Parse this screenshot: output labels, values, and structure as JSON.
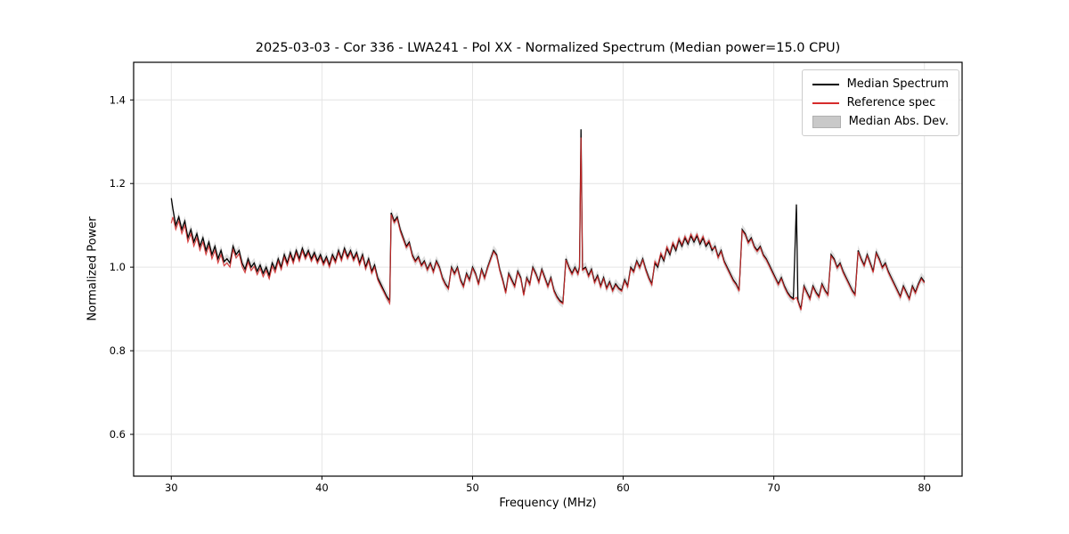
{
  "chart_data": {
    "type": "line",
    "title": "2025-03-03 - Cor 336 - LWA241 - Pol XX - Normalized Spectrum (Median power=15.0 CPU)",
    "xlabel": "Frequency (MHz)",
    "ylabel": "Normalized Power",
    "xlim": [
      27.5,
      82.5
    ],
    "ylim": [
      0.5,
      1.49
    ],
    "x_tick_labels": [
      "30",
      "40",
      "50",
      "60",
      "70",
      "80"
    ],
    "y_tick_labels": [
      "0.6",
      "0.8",
      "1.0",
      "1.2",
      "1.4"
    ],
    "grid": true,
    "legend": {
      "position": "upper right"
    },
    "x": [
      30.0,
      30.1,
      30.3,
      30.5,
      30.7,
      30.9,
      31.1,
      31.3,
      31.5,
      31.7,
      31.9,
      32.1,
      32.3,
      32.5,
      32.7,
      32.9,
      33.1,
      33.3,
      33.5,
      33.7,
      33.9,
      34.1,
      34.3,
      34.5,
      34.7,
      34.9,
      35.1,
      35.3,
      35.5,
      35.7,
      35.9,
      36.1,
      36.3,
      36.5,
      36.7,
      36.9,
      37.1,
      37.3,
      37.5,
      37.7,
      37.9,
      38.1,
      38.3,
      38.5,
      38.7,
      38.9,
      39.1,
      39.3,
      39.5,
      39.7,
      39.9,
      40.1,
      40.3,
      40.5,
      40.7,
      40.9,
      41.1,
      41.3,
      41.5,
      41.7,
      41.9,
      42.1,
      42.3,
      42.5,
      42.7,
      42.9,
      43.1,
      43.3,
      43.5,
      43.7,
      43.9,
      44.1,
      44.3,
      44.5,
      44.6,
      44.8,
      45.0,
      45.2,
      45.4,
      45.6,
      45.8,
      46.0,
      46.2,
      46.4,
      46.6,
      46.8,
      47.0,
      47.2,
      47.4,
      47.6,
      47.8,
      48.0,
      48.2,
      48.4,
      48.6,
      48.8,
      49.0,
      49.2,
      49.4,
      49.6,
      49.8,
      50.0,
      50.2,
      50.4,
      50.6,
      50.8,
      51.0,
      51.2,
      51.4,
      51.6,
      51.8,
      52.0,
      52.2,
      52.4,
      52.6,
      52.8,
      53.0,
      53.2,
      53.4,
      53.6,
      53.8,
      54.0,
      54.2,
      54.4,
      54.6,
      54.8,
      55.0,
      55.2,
      55.4,
      55.6,
      55.8,
      56.0,
      56.2,
      56.4,
      56.6,
      56.8,
      57.0,
      57.1,
      57.2,
      57.3,
      57.5,
      57.7,
      57.9,
      58.1,
      58.3,
      58.5,
      58.7,
      58.9,
      59.1,
      59.3,
      59.5,
      59.7,
      59.9,
      60.1,
      60.3,
      60.5,
      60.7,
      60.9,
      61.1,
      61.3,
      61.5,
      61.7,
      61.9,
      62.1,
      62.3,
      62.5,
      62.7,
      62.9,
      63.1,
      63.3,
      63.5,
      63.7,
      63.9,
      64.1,
      64.3,
      64.5,
      64.7,
      64.9,
      65.1,
      65.3,
      65.5,
      65.7,
      65.9,
      66.1,
      66.3,
      66.5,
      66.7,
      66.9,
      67.1,
      67.3,
      67.5,
      67.7,
      67.9,
      68.1,
      68.3,
      68.5,
      68.7,
      68.9,
      69.1,
      69.3,
      69.5,
      69.7,
      69.9,
      70.1,
      70.3,
      70.5,
      70.7,
      70.9,
      71.1,
      71.3,
      71.5,
      71.6,
      71.8,
      72.0,
      72.2,
      72.4,
      72.6,
      72.8,
      73.0,
      73.2,
      73.4,
      73.6,
      73.8,
      74.0,
      74.2,
      74.4,
      74.6,
      74.8,
      75.0,
      75.2,
      75.4,
      75.6,
      75.8,
      76.0,
      76.2,
      76.4,
      76.6,
      76.8,
      77.0,
      77.2,
      77.4,
      77.6,
      77.8,
      78.0,
      78.2,
      78.4,
      78.6,
      78.8,
      79.0,
      79.2,
      79.4,
      79.6,
      79.8,
      80.0
    ],
    "series": [
      {
        "name": "Median Spectrum",
        "color": "#000000",
        "values": [
          1.165,
          1.14,
          1.1,
          1.12,
          1.09,
          1.11,
          1.07,
          1.09,
          1.06,
          1.08,
          1.05,
          1.07,
          1.04,
          1.06,
          1.03,
          1.05,
          1.02,
          1.04,
          1.013,
          1.02,
          1.01,
          1.05,
          1.03,
          1.04,
          1.01,
          0.995,
          1.02,
          1.0,
          1.01,
          0.99,
          1.005,
          0.985,
          1.0,
          0.98,
          1.01,
          0.995,
          1.02,
          1.0,
          1.03,
          1.01,
          1.035,
          1.015,
          1.04,
          1.02,
          1.045,
          1.025,
          1.04,
          1.02,
          1.035,
          1.015,
          1.03,
          1.01,
          1.025,
          1.005,
          1.03,
          1.015,
          1.04,
          1.02,
          1.045,
          1.025,
          1.04,
          1.02,
          1.035,
          1.01,
          1.03,
          1.0,
          1.02,
          0.99,
          1.005,
          0.975,
          0.96,
          0.945,
          0.93,
          0.92,
          1.13,
          1.11,
          1.12,
          1.09,
          1.07,
          1.05,
          1.06,
          1.03,
          1.015,
          1.025,
          1.005,
          1.015,
          0.995,
          1.01,
          0.99,
          1.015,
          1.0,
          0.975,
          0.96,
          0.95,
          1.0,
          0.985,
          1.0,
          0.97,
          0.955,
          0.985,
          0.97,
          1.0,
          0.985,
          0.96,
          0.995,
          0.975,
          1.0,
          1.02,
          1.04,
          1.03,
          0.995,
          0.97,
          0.94,
          0.985,
          0.97,
          0.955,
          0.99,
          0.975,
          0.935,
          0.975,
          0.96,
          1.0,
          0.985,
          0.965,
          0.995,
          0.975,
          0.955,
          0.975,
          0.945,
          0.93,
          0.92,
          0.915,
          1.02,
          1.0,
          0.985,
          1.0,
          0.985,
          1.0,
          1.33,
          0.995,
          1.0,
          0.98,
          0.995,
          0.965,
          0.98,
          0.955,
          0.975,
          0.95,
          0.965,
          0.945,
          0.96,
          0.95,
          0.945,
          0.97,
          0.955,
          1.0,
          0.99,
          1.015,
          1.0,
          1.02,
          0.995,
          0.975,
          0.96,
          1.01,
          1.0,
          1.03,
          1.015,
          1.045,
          1.03,
          1.055,
          1.04,
          1.065,
          1.05,
          1.07,
          1.055,
          1.075,
          1.06,
          1.075,
          1.055,
          1.07,
          1.05,
          1.06,
          1.04,
          1.05,
          1.025,
          1.04,
          1.015,
          1.0,
          0.985,
          0.97,
          0.96,
          0.945,
          1.09,
          1.08,
          1.06,
          1.07,
          1.05,
          1.04,
          1.05,
          1.03,
          1.02,
          1.005,
          0.99,
          0.975,
          0.96,
          0.975,
          0.955,
          0.94,
          0.93,
          0.925,
          1.15,
          0.92,
          0.9,
          0.955,
          0.94,
          0.925,
          0.955,
          0.94,
          0.93,
          0.96,
          0.945,
          0.935,
          1.03,
          1.02,
          1.0,
          1.01,
          0.99,
          0.975,
          0.96,
          0.945,
          0.935,
          1.04,
          1.02,
          1.005,
          1.03,
          1.01,
          0.99,
          1.035,
          1.02,
          1.0,
          1.01,
          0.99,
          0.975,
          0.96,
          0.945,
          0.93,
          0.955,
          0.94,
          0.925,
          0.955,
          0.94,
          0.96,
          0.975,
          0.965
        ]
      },
      {
        "name": "Reference spec",
        "color": "#d62b2b",
        "values": [
          1.105,
          1.12,
          1.09,
          1.11,
          1.08,
          1.1,
          1.06,
          1.08,
          1.05,
          1.07,
          1.04,
          1.06,
          1.03,
          1.05,
          1.02,
          1.04,
          1.01,
          1.03,
          1.003,
          1.01,
          1.0,
          1.042,
          1.022,
          1.032,
          1.002,
          0.987,
          1.012,
          0.992,
          1.002,
          0.982,
          0.997,
          0.977,
          0.992,
          0.972,
          1.002,
          0.987,
          1.014,
          0.994,
          1.024,
          1.004,
          1.029,
          1.009,
          1.034,
          1.014,
          1.039,
          1.019,
          1.034,
          1.014,
          1.029,
          1.009,
          1.024,
          1.005,
          1.02,
          1.0,
          1.025,
          1.01,
          1.035,
          1.015,
          1.04,
          1.02,
          1.035,
          1.015,
          1.03,
          1.005,
          1.025,
          0.995,
          1.015,
          0.985,
          1.0,
          0.97,
          0.955,
          0.941,
          0.926,
          0.913,
          1.126,
          1.106,
          1.116,
          1.086,
          1.066,
          1.046,
          1.056,
          1.026,
          1.012,
          1.022,
          1.002,
          1.012,
          0.992,
          1.007,
          0.987,
          1.012,
          0.997,
          0.972,
          0.957,
          0.947,
          0.997,
          0.982,
          0.997,
          0.967,
          0.952,
          0.982,
          0.967,
          0.997,
          0.982,
          0.957,
          0.992,
          0.972,
          0.997,
          1.017,
          1.037,
          1.027,
          0.992,
          0.967,
          0.937,
          0.982,
          0.967,
          0.952,
          0.987,
          0.972,
          0.932,
          0.972,
          0.957,
          0.997,
          0.982,
          0.962,
          0.992,
          0.972,
          0.952,
          0.972,
          0.942,
          0.927,
          0.917,
          0.912,
          1.017,
          0.997,
          0.982,
          0.997,
          0.982,
          0.997,
          1.31,
          0.992,
          0.997,
          0.977,
          0.992,
          0.962,
          0.977,
          0.952,
          0.972,
          0.947,
          0.962,
          0.942,
          0.957,
          0.947,
          0.942,
          0.967,
          0.952,
          0.997,
          0.987,
          1.012,
          0.997,
          1.017,
          0.992,
          0.972,
          0.957,
          1.014,
          1.004,
          1.034,
          1.019,
          1.049,
          1.034,
          1.059,
          1.044,
          1.069,
          1.054,
          1.074,
          1.059,
          1.079,
          1.064,
          1.079,
          1.059,
          1.074,
          1.054,
          1.064,
          1.044,
          1.047,
          1.022,
          1.037,
          1.012,
          0.997,
          0.982,
          0.967,
          0.957,
          0.942,
          1.087,
          1.077,
          1.057,
          1.067,
          1.047,
          1.037,
          1.047,
          1.027,
          1.017,
          1.002,
          0.987,
          0.972,
          0.957,
          0.972,
          0.952,
          0.937,
          0.927,
          0.922,
          0.928,
          0.917,
          0.897,
          0.952,
          0.937,
          0.922,
          0.952,
          0.937,
          0.927,
          0.957,
          0.942,
          0.932,
          1.027,
          1.017,
          0.997,
          1.007,
          0.987,
          0.972,
          0.957,
          0.942,
          0.932,
          1.037,
          1.017,
          1.002,
          1.027,
          1.007,
          0.987,
          1.032,
          1.017,
          0.997,
          1.007,
          0.987,
          0.972,
          0.957,
          0.942,
          0.927,
          0.952,
          0.937,
          0.922,
          0.952,
          0.937,
          0.957,
          0.972,
          0.962
        ]
      }
    ],
    "band": {
      "name": "Median Abs. Dev.",
      "color": "#c9c9c9",
      "opacity": 0.6,
      "half_width": 0.012
    }
  }
}
